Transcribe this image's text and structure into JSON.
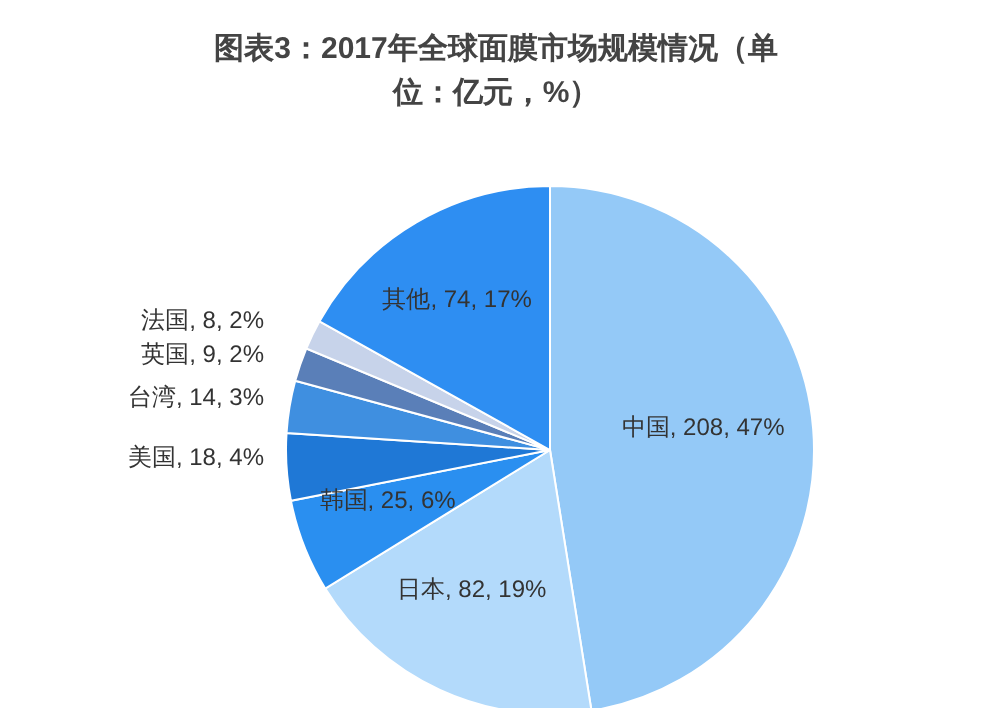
{
  "chart_data": {
    "type": "pie",
    "title": "图表3：2017年全球面膜市场规模情况（单位：亿元，%）",
    "categories": [
      "中国",
      "日本",
      "韩国",
      "美国",
      "台湾",
      "英国",
      "法国",
      "其他"
    ],
    "values": [
      208,
      82,
      25,
      18,
      14,
      9,
      8,
      74
    ],
    "value_labels": [
      "208, 47%",
      "82, 19%",
      "25, 6%",
      "18, 4%",
      "14, 3%",
      "9, 2%",
      "8, 2%",
      "74, 17%"
    ],
    "colors": [
      "#94c9f7",
      "#b3dafb",
      "#2a8ff0",
      "#1f78d6",
      "#3f8fe0",
      "#5a7fb8",
      "#c7d3ea",
      "#2e8ef2"
    ],
    "legend": false
  }
}
